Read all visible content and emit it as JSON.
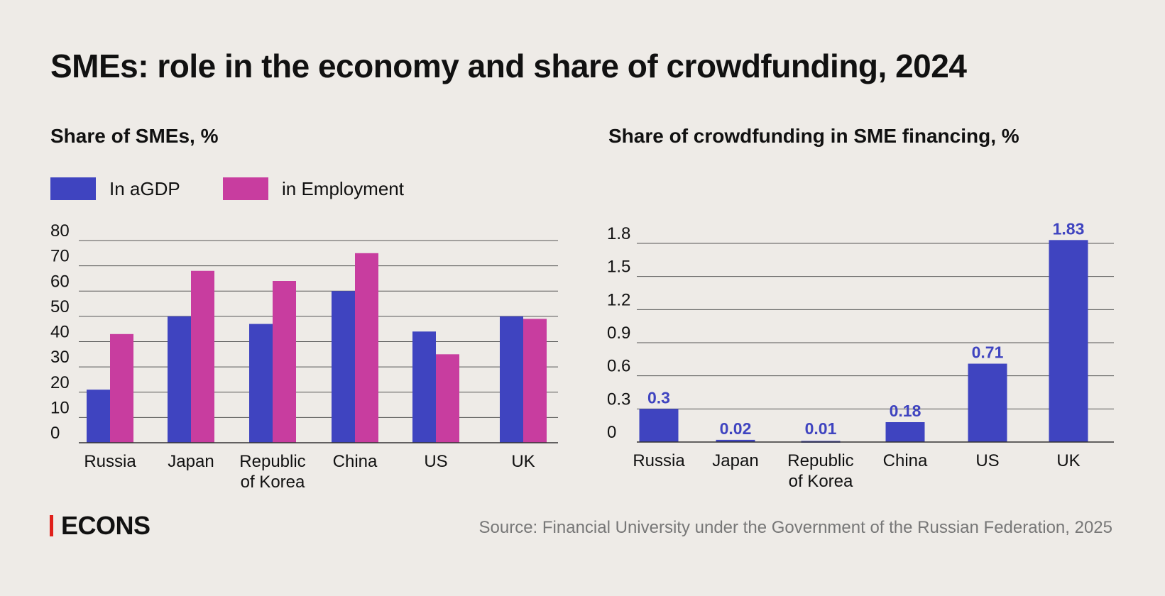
{
  "title": "SMEs: role in the economy and share of crowdfunding, 2024",
  "source": "Source: Financial University under the Government of the Russian Federation, 2025",
  "logo": {
    "text": "ECONS",
    "accent": "#e0201b"
  },
  "colors": {
    "background": "#eeebe7",
    "agdp": "#3f44c0",
    "employment": "#c83d9f",
    "grid": "#555555"
  },
  "chart_data": [
    {
      "type": "bar",
      "title": "Share of SMEs, %",
      "categories": [
        "Russia",
        "Japan",
        "Republic of Korea",
        "China",
        "US",
        "UK"
      ],
      "series": [
        {
          "name": "In aGDP",
          "color": "#3f44c0",
          "values": [
            21,
            50,
            47,
            60,
            44,
            50
          ]
        },
        {
          "name": "in Employment",
          "color": "#c83d9f",
          "values": [
            43,
            68,
            64,
            75,
            35,
            49
          ]
        }
      ],
      "yticks": [
        0,
        10,
        20,
        30,
        40,
        50,
        60,
        70,
        80
      ],
      "ylim": [
        0,
        80
      ],
      "grid": true,
      "legend": "top-left"
    },
    {
      "type": "bar",
      "title": "Share of crowdfunding in SME financing, %",
      "categories": [
        "Russia",
        "Japan",
        "Republic of Korea",
        "China",
        "US",
        "UK"
      ],
      "values": [
        0.3,
        0.02,
        0.01,
        0.18,
        0.71,
        1.83
      ],
      "labels": [
        "0.3",
        "0.02",
        "0.01",
        "0.18",
        "0.71",
        "1.83"
      ],
      "color": "#3f44c0",
      "yticks": [
        "0",
        "0.3",
        "0.6",
        "0.9",
        "1.2",
        "1.5",
        "1.8"
      ],
      "ylim": [
        0,
        1.8
      ],
      "grid": true
    }
  ]
}
